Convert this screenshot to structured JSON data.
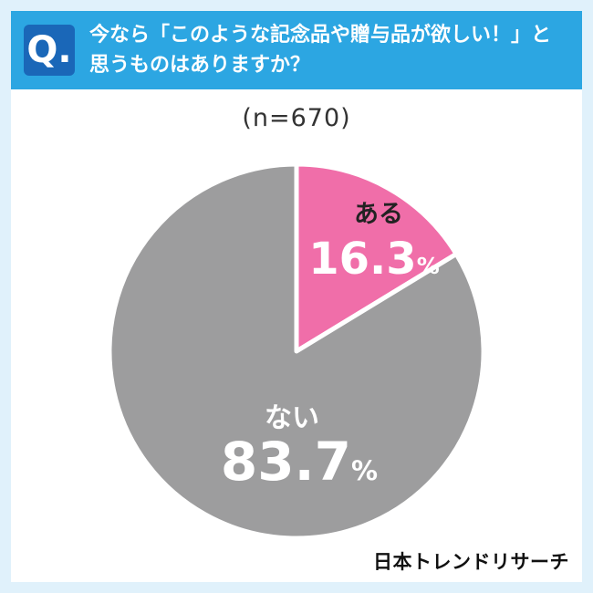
{
  "header": {
    "q_label": "Q.",
    "question_line1": "今なら「このような記念品や贈与品が欲しい！」と",
    "question_line2": "思うものはありますか？",
    "band_color": "#2CA6E2",
    "q_box_color": "#1A67B8",
    "text_color": "#FFFFFF"
  },
  "chart_data": {
    "type": "pie",
    "title": "今なら「このような記念品や贈与品が欲しい！」と思うものはありますか？",
    "sample_label": "(n=670)",
    "start_angle": "top",
    "direction": "clockwise",
    "gap_color": "#FFFFFF",
    "series": [
      {
        "label": "ある",
        "value": 16.3,
        "value_label": "16.3",
        "unit": "%",
        "color": "#F06EA9",
        "label_color": "#222222",
        "value_color": "#FFFFFF"
      },
      {
        "label": "ない",
        "value": 83.7,
        "value_label": "83.7",
        "unit": "%",
        "color": "#9D9D9E",
        "label_color": "#FFFFFF",
        "value_color": "#FFFFFF"
      }
    ]
  },
  "footer": {
    "brand": "日本トレンドリサーチ"
  }
}
